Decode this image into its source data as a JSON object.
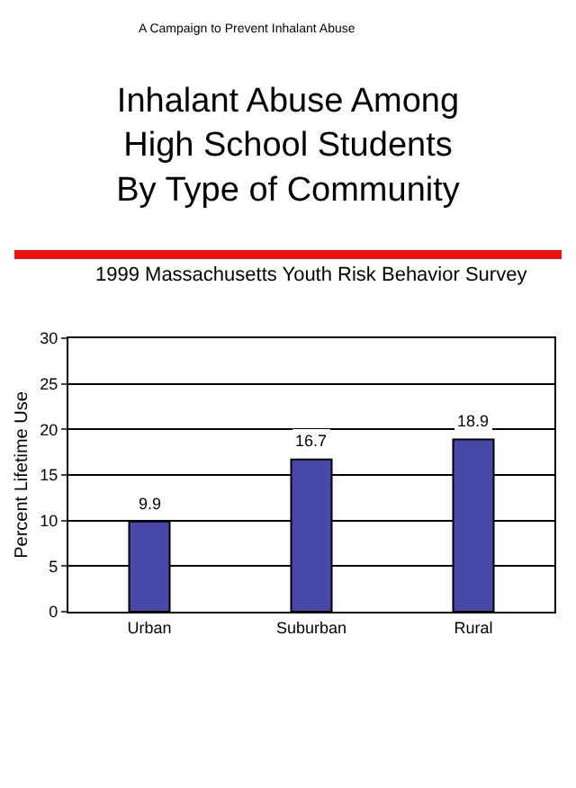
{
  "chart_data": {
    "type": "bar",
    "title": "Inhalant Abuse Among\nHigh School Students\nBy Type of Community",
    "subtitle": "1999 Massachusetts Youth Risk Behavior Survey",
    "ylabel": "Percent Lifetime Use",
    "annotations": [
      "A Campaign to Prevent Inhalant Abuse"
    ],
    "categories": [
      "Urban",
      "Suburban",
      "Rural"
    ],
    "values": [
      9.9,
      16.7,
      18.9
    ],
    "color": "#4848a8",
    "data_labels": true,
    "ylim": [
      0,
      30
    ],
    "yticks": [
      0,
      5,
      10,
      15,
      20,
      25,
      30
    ],
    "grid": "y"
  }
}
